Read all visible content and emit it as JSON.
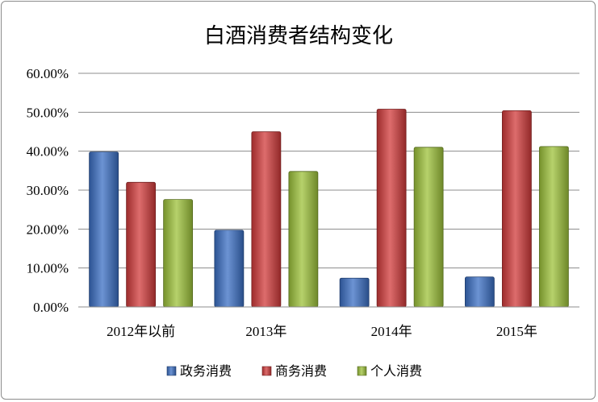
{
  "chart_data": {
    "type": "bar",
    "title": "白酒消费者结构变化",
    "categories": [
      "2012年以前",
      "2013年",
      "2014年",
      "2015年"
    ],
    "series": [
      {
        "name": "政务消费",
        "values": [
          39.8,
          19.7,
          7.4,
          7.7
        ],
        "color": "#3b6fc4"
      },
      {
        "name": "商务消费",
        "values": [
          32.0,
          45.0,
          50.8,
          50.4
        ],
        "color": "#d13b3b"
      },
      {
        "name": "个人消费",
        "values": [
          27.6,
          34.8,
          41.0,
          41.2
        ],
        "color": "#9dc23a"
      }
    ],
    "ylim": [
      0,
      60
    ],
    "yticks": [
      "0.00%",
      "10.00%",
      "20.00%",
      "30.00%",
      "40.00%",
      "50.00%",
      "60.00%"
    ],
    "xlabel": "",
    "ylabel": "",
    "grid": true,
    "legend": "bottom"
  }
}
